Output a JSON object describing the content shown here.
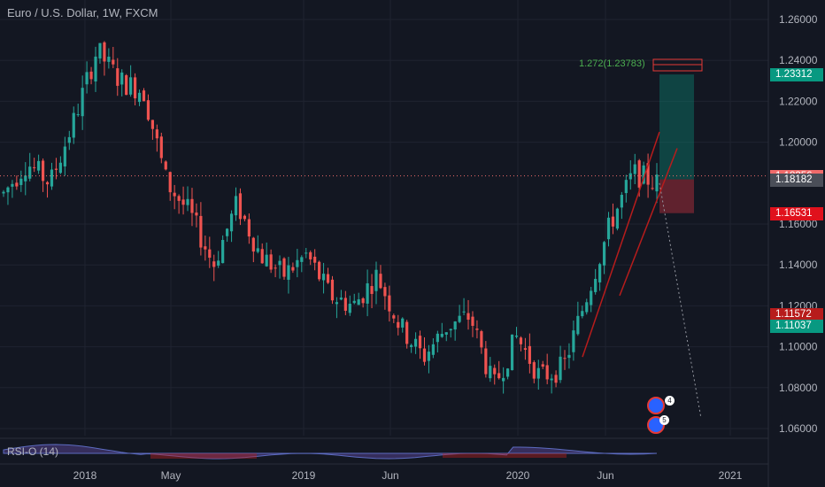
{
  "header": {
    "title": "Euro / U.S. Dollar, 1W, FXCM"
  },
  "indicator": {
    "label": "RSI-O (14)"
  },
  "fib": {
    "label": "1.272(1.23783)"
  },
  "price_tags": [
    {
      "label": "1.23312",
      "value": 1.23312,
      "color": "#089981"
    },
    {
      "label": "1.18356",
      "value": 1.18356,
      "color": "#f06b6b"
    },
    {
      "label": "1.18182",
      "value": 1.18182,
      "color": "#4a4e58"
    },
    {
      "label": "1.16531",
      "value": 1.16531,
      "color": "#e0111c"
    },
    {
      "label": "1.11572",
      "value": 1.11572,
      "color": "#b71c1c"
    },
    {
      "label": "1.11037",
      "value": 1.11037,
      "color": "#089981"
    }
  ],
  "events": {
    "badge_top": "4",
    "badge_bottom": "5"
  },
  "colors": {
    "up": "#26a69a",
    "down": "#ef5350",
    "background": "#131722"
  },
  "chart_data": {
    "type": "candlestick",
    "title": "Euro / U.S. Dollar, 1W, FXCM",
    "ylim": [
      1.05,
      1.265
    ],
    "y_ticks": [
      "1.26000",
      "1.24000",
      "1.22000",
      "1.20000",
      "1.16000",
      "1.14000",
      "1.12000",
      "1.10000",
      "1.08000",
      "1.06000"
    ],
    "x_ticks": [
      "2018",
      "May",
      "2019",
      "Jun",
      "2020",
      "Jun",
      "2021"
    ],
    "close_points": [
      {
        "x": "2017-10",
        "y": 1.175
      },
      {
        "x": "2017-11",
        "y": 1.19
      },
      {
        "x": "2017-12",
        "y": 1.18
      },
      {
        "x": "2018-01",
        "y": 1.21
      },
      {
        "x": "2018-02",
        "y": 1.245
      },
      {
        "x": "2018-03",
        "y": 1.23
      },
      {
        "x": "2018-04",
        "y": 1.225
      },
      {
        "x": "2018-05",
        "y": 1.18
      },
      {
        "x": "2018-06",
        "y": 1.165
      },
      {
        "x": "2018-08",
        "y": 1.14
      },
      {
        "x": "2018-09",
        "y": 1.17
      },
      {
        "x": "2018-10",
        "y": 1.145
      },
      {
        "x": "2018-11",
        "y": 1.135
      },
      {
        "x": "2019-01",
        "y": 1.145
      },
      {
        "x": "2019-03",
        "y": 1.125
      },
      {
        "x": "2019-05",
        "y": 1.12
      },
      {
        "x": "2019-06",
        "y": 1.135
      },
      {
        "x": "2019-08",
        "y": 1.11
      },
      {
        "x": "2019-10",
        "y": 1.095
      },
      {
        "x": "2019-12",
        "y": 1.11
      },
      {
        "x": "2020-01",
        "y": 1.115
      },
      {
        "x": "2020-02",
        "y": 1.08
      },
      {
        "x": "2020-03",
        "y": 1.105
      },
      {
        "x": "2020-04",
        "y": 1.085
      },
      {
        "x": "2020-05",
        "y": 1.09
      },
      {
        "x": "2020-06",
        "y": 1.125
      },
      {
        "x": "2020-07",
        "y": 1.16
      },
      {
        "x": "2020-08",
        "y": 1.185
      },
      {
        "x": "2020-09",
        "y": 1.18
      }
    ]
  }
}
